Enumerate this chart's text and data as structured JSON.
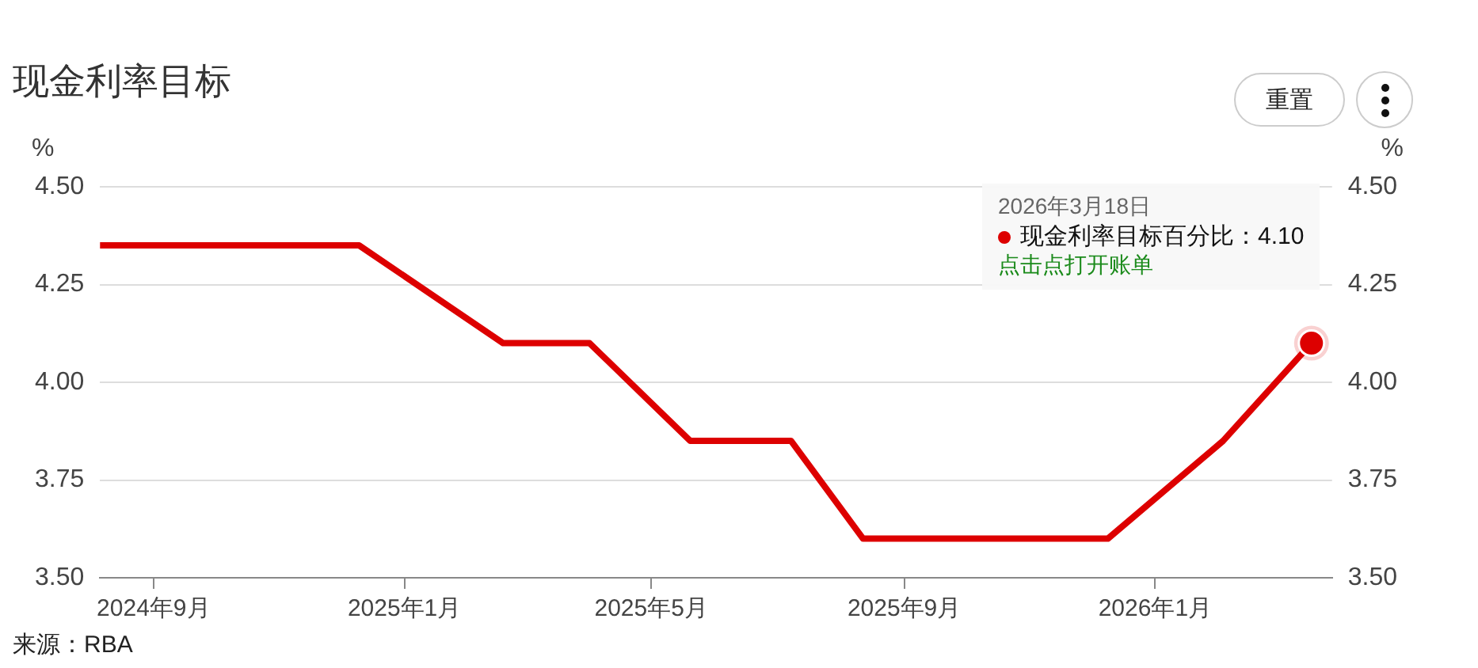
{
  "chart_data": {
    "type": "line",
    "title": "现金利率目标",
    "ylabel": "%",
    "y2label": "%",
    "series": [
      {
        "color": "#dd0000",
        "x": [
          "2024-08-06",
          "2024-12-10",
          "2025-02-18",
          "2025-04-01",
          "2025-05-20",
          "2025-07-08",
          "2025-08-12",
          "2025-12-09",
          "2026-02-03",
          "2026-03-18"
        ],
        "values": [
          4.35,
          4.35,
          4.1,
          4.1,
          3.85,
          3.85,
          3.6,
          3.6,
          3.85,
          4.1
        ]
      }
    ],
    "xlim": [
      "2024-08-06",
      "2026-03-28"
    ],
    "xticks": [
      {
        "value": "2024-09",
        "label": "2024年9月"
      },
      {
        "value": "2025-01",
        "label": "2025年1月"
      },
      {
        "value": "2025-05",
        "label": "2025年5月"
      },
      {
        "value": "2025-09",
        "label": "2025年9月"
      },
      {
        "value": "2026-01",
        "label": "2026年1月"
      }
    ],
    "ylim": [
      3.5,
      4.5
    ],
    "yticks": [
      {
        "value": 3.5,
        "label": "3.50"
      },
      {
        "value": 3.75,
        "label": "3.75"
      },
      {
        "value": 4,
        "label": "4.00"
      },
      {
        "value": 4.25,
        "label": "4.25"
      },
      {
        "value": 4.5,
        "label": "4.50"
      }
    ],
    "y2lim": [
      3.5,
      4.5
    ],
    "y2ticks": [
      {
        "value": 3.5,
        "label": "3.50"
      },
      {
        "value": 3.75,
        "label": "3.75"
      },
      {
        "value": 4,
        "label": "4.00"
      },
      {
        "value": 4.25,
        "label": "4.25"
      },
      {
        "value": 4.5,
        "label": "4.50"
      }
    ],
    "grid": "y",
    "legend": false,
    "marker": "none",
    "line_style": "solid",
    "annotations": [
      "2026年3月18日",
      "现金利率目标百分比：4.10",
      "点击点打开账单",
      "重置",
      "来源：RBA"
    ]
  }
}
